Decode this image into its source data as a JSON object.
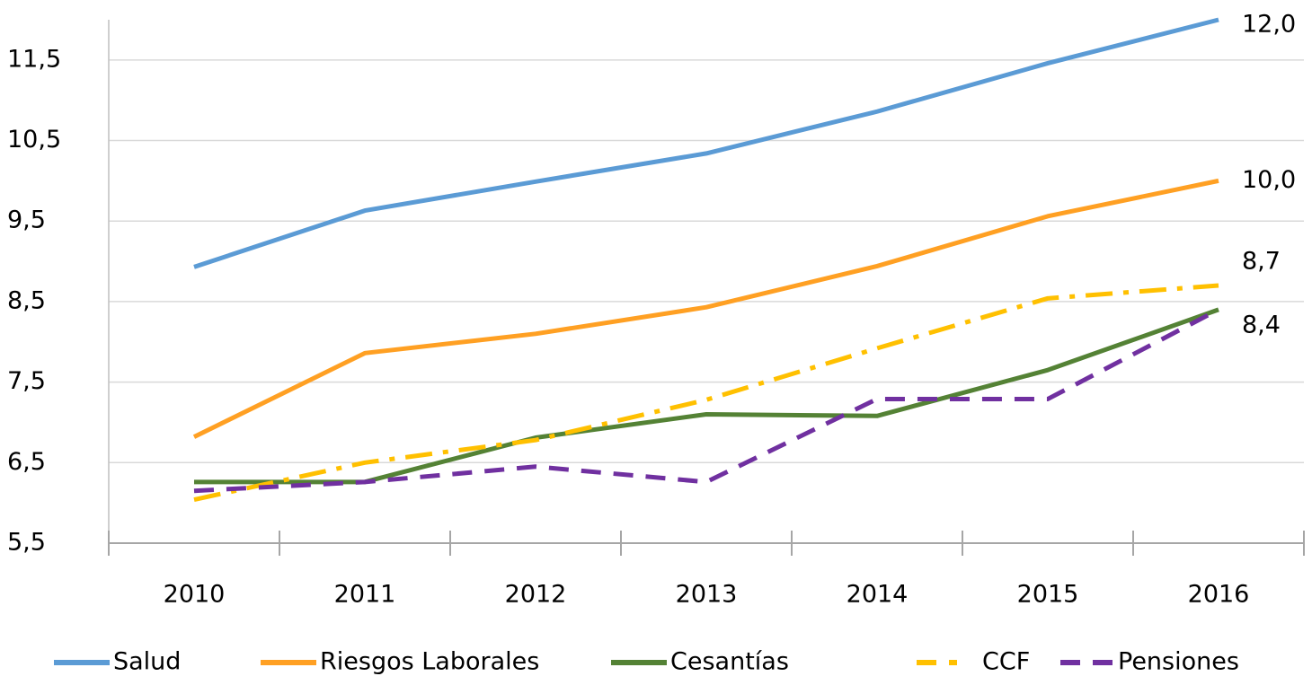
{
  "chart_data": {
    "type": "line",
    "categories": [
      "2010",
      "2011",
      "2012",
      "2013",
      "2014",
      "2015",
      "2016"
    ],
    "ylim": [
      5.5,
      12.0
    ],
    "yticks": [
      {
        "value": 5.5,
        "label": "5,5"
      },
      {
        "value": 6.5,
        "label": "6,5"
      },
      {
        "value": 7.5,
        "label": "7,5"
      },
      {
        "value": 8.5,
        "label": "8,5"
      },
      {
        "value": 9.5,
        "label": "9,5"
      },
      {
        "value": 10.5,
        "label": "10,5"
      },
      {
        "value": 11.5,
        "label": "11,5"
      }
    ],
    "grid": true,
    "legend": "bottom",
    "series": [
      {
        "name": "Salud",
        "color": "#5b9bd5",
        "dash": "solid",
        "values": [
          8.93,
          9.63,
          9.99,
          10.34,
          10.86,
          11.46,
          12.0
        ],
        "value_labels": [
          null,
          null,
          null,
          null,
          null,
          null,
          "12,0"
        ]
      },
      {
        "name": "Riesgos Laborales",
        "color": "#ffa023",
        "dash": "solid",
        "values": [
          6.82,
          7.86,
          8.1,
          8.43,
          8.94,
          9.56,
          10.0
        ],
        "value_labels": [
          null,
          null,
          null,
          null,
          null,
          null,
          "10,0"
        ]
      },
      {
        "name": "Cesantías",
        "color": "#548235",
        "dash": "solid",
        "values": [
          6.26,
          6.26,
          6.81,
          7.1,
          7.08,
          7.65,
          8.4
        ],
        "value_labels": [
          null,
          null,
          null,
          null,
          null,
          null,
          "8,4"
        ]
      },
      {
        "name": "CCF",
        "color": "#ffc000",
        "dash": "dashdot",
        "values": [
          6.04,
          6.5,
          6.78,
          7.28,
          7.92,
          8.54,
          8.7
        ],
        "value_labels": [
          null,
          null,
          null,
          null,
          null,
          null,
          "8,7"
        ]
      },
      {
        "name": "Pensiones",
        "color": "#7030a0",
        "dash": "dash",
        "values": [
          6.15,
          6.26,
          6.45,
          6.26,
          7.29,
          7.29,
          8.4
        ]
      }
    ]
  }
}
